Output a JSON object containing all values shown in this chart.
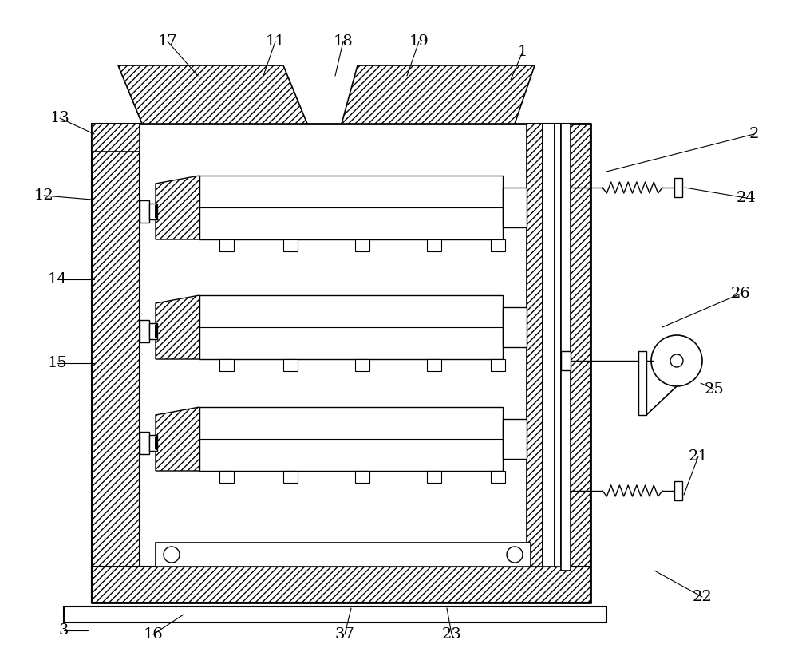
{
  "bg_color": "#ffffff",
  "lw": 1.0,
  "fig_width": 10.0,
  "fig_height": 8.22
}
